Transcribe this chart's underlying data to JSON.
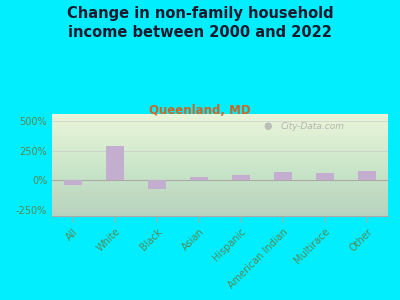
{
  "title": "Change in non-family household\nincome between 2000 and 2022",
  "subtitle": "Queenland, MD",
  "categories": [
    "All",
    "White",
    "Black",
    "Asian",
    "Hispanic",
    "American Indian",
    "Multirace",
    "Other"
  ],
  "values": [
    -40,
    290,
    -75,
    30,
    45,
    75,
    65,
    80
  ],
  "bar_color": "#c4aed0",
  "title_fontsize": 10.5,
  "subtitle_fontsize": 8.5,
  "subtitle_color": "#cc6622",
  "title_color": "#1a1a2e",
  "background_outer": "#00eeff",
  "plot_bg_top": "#f4f8ec",
  "plot_bg_bottom": "#ddeebb",
  "ylim": [
    -300,
    560
  ],
  "yticks": [
    -250,
    0,
    250,
    500
  ],
  "ytick_labels": [
    "-250%",
    "0%",
    "250%",
    "500%"
  ],
  "watermark": "City-Data.com",
  "grid_color": "#cccccc",
  "tick_label_color": "#558855",
  "bar_width": 0.45
}
